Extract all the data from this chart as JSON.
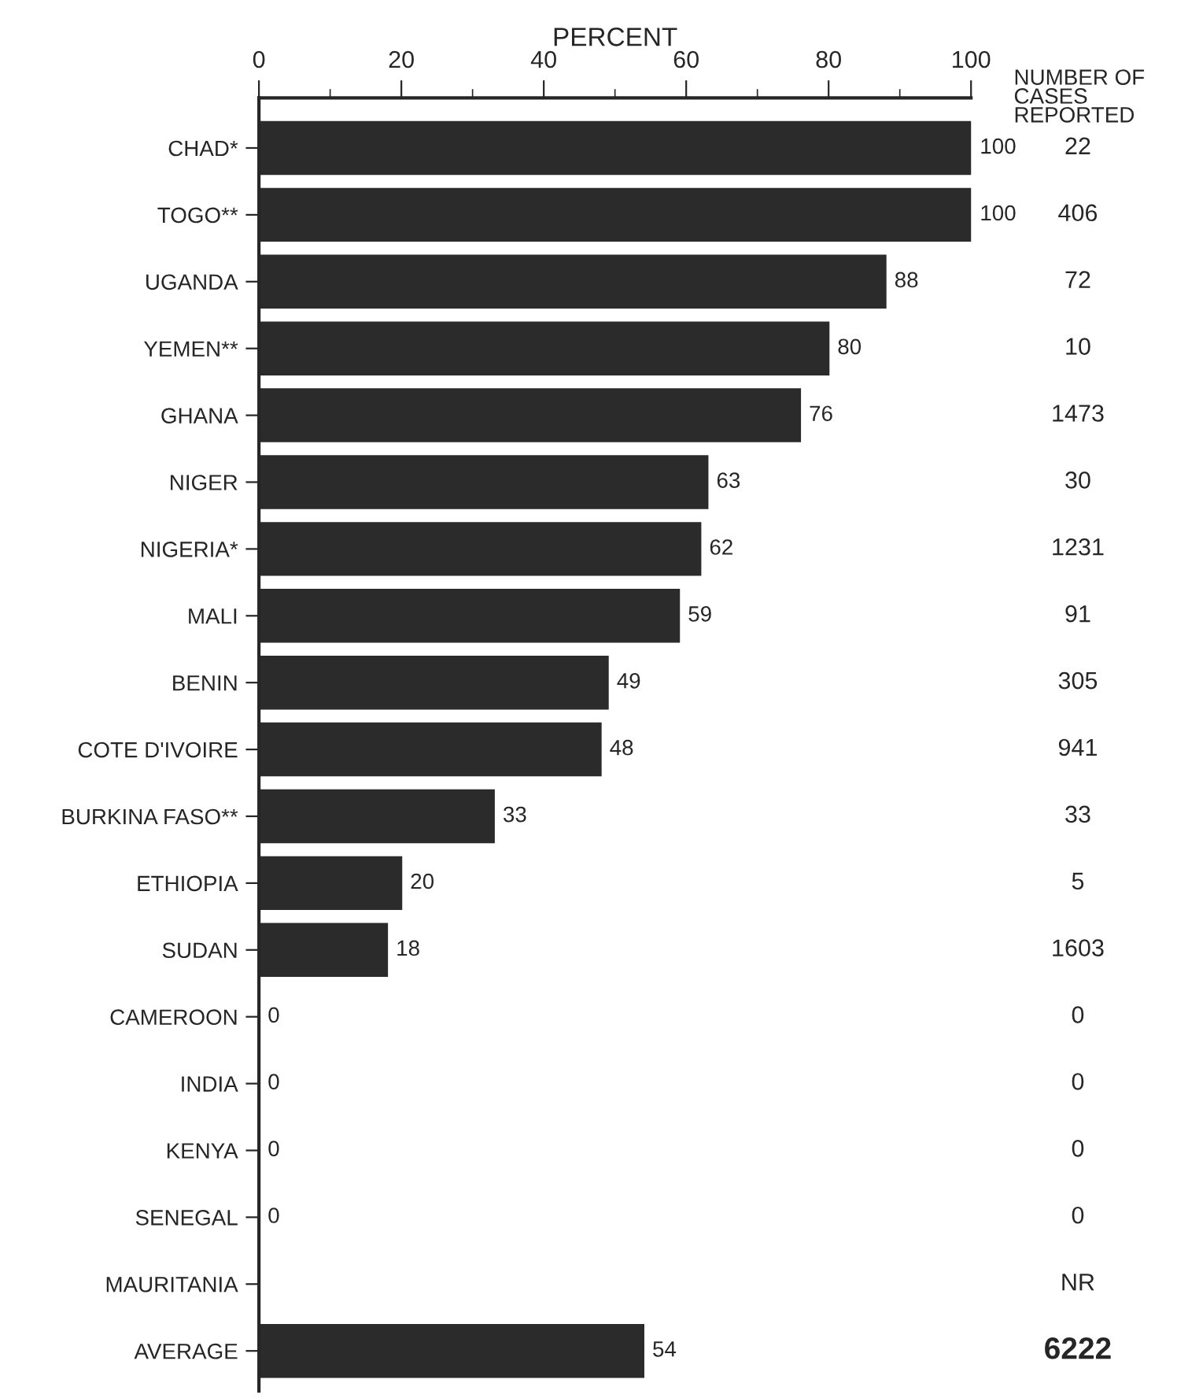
{
  "chart_data": {
    "type": "bar",
    "orientation": "horizontal",
    "xlabel": "PERCENT",
    "categories": [
      "CHAD*",
      "TOGO**",
      "UGANDA",
      "YEMEN**",
      "GHANA",
      "NIGER",
      "NIGERIA*",
      "MALI",
      "BENIN",
      "COTE D'IVOIRE",
      "BURKINA FASO**",
      "ETHIOPIA",
      "SUDAN",
      "CAMEROON",
      "INDIA",
      "KENYA",
      "SENEGAL",
      "MAURITANIA",
      "AVERAGE"
    ],
    "values": [
      100,
      100,
      88,
      80,
      76,
      63,
      62,
      59,
      49,
      48,
      33,
      20,
      18,
      0,
      0,
      0,
      0,
      null,
      54
    ],
    "color": "#2b2b2b",
    "data_labels": true,
    "xlim": [
      0,
      100
    ],
    "xticks": [
      0,
      20,
      40,
      60,
      80,
      100
    ],
    "grid": false,
    "legend": false,
    "annotations": [
      "NUMBER OF\nCASES\nREPORTED",
      "22",
      "406",
      "72",
      "10",
      "1473",
      "30",
      "1231",
      "91",
      "305",
      "941",
      "33",
      "5",
      "1603",
      "0",
      "0",
      "0",
      "0",
      "NR",
      "6222"
    ]
  }
}
